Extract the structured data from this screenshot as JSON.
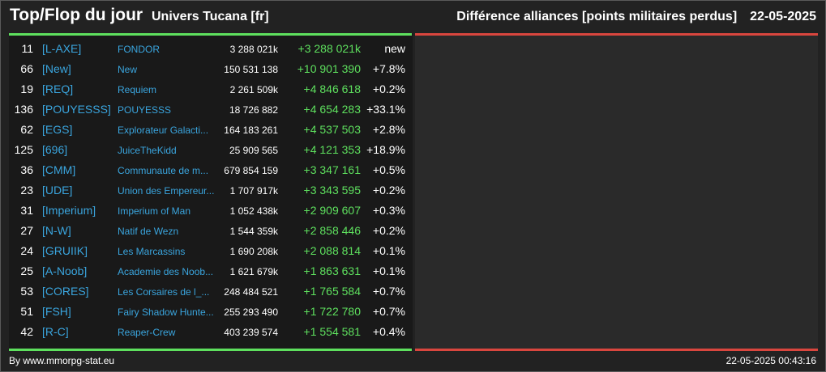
{
  "header": {
    "title": "Top/Flop du jour",
    "universe": "Univers Tucana [fr]",
    "subject": "Différence alliances [points militaires perdus]",
    "date": "22-05-2025"
  },
  "colors": {
    "tag_link": "#3aa5de",
    "gain": "#5ee05e",
    "flop_line": "#d9463e",
    "top_line": "#5ee05e"
  },
  "rows": [
    {
      "rank": "11",
      "tag": "[L-AXE]",
      "name": "FONDOR",
      "points": "3 288 021k",
      "diff": "+3 288 021k",
      "pct": "new"
    },
    {
      "rank": "66",
      "tag": "[New]",
      "name": "New",
      "points": "150 531 138",
      "diff": "+10 901 390",
      "pct": "+7.8%"
    },
    {
      "rank": "19",
      "tag": "[REQ]",
      "name": "Requiem",
      "points": "2 261 509k",
      "diff": "+4 846 618",
      "pct": "+0.2%"
    },
    {
      "rank": "136",
      "tag": "[POUYESSS]",
      "name": "POUYESSS",
      "points": "18 726 882",
      "diff": "+4 654 283",
      "pct": "+33.1%"
    },
    {
      "rank": "62",
      "tag": "[EGS]",
      "name": "Explorateur Galacti...",
      "points": "164 183 261",
      "diff": "+4 537 503",
      "pct": "+2.8%"
    },
    {
      "rank": "125",
      "tag": "[696]",
      "name": "JuiceTheKidd",
      "points": "25 909 565",
      "diff": "+4 121 353",
      "pct": "+18.9%"
    },
    {
      "rank": "36",
      "tag": "[CMM]",
      "name": "Communaute de m...",
      "points": "679 854 159",
      "diff": "+3 347 161",
      "pct": "+0.5%"
    },
    {
      "rank": "23",
      "tag": "[UDE]",
      "name": "Union des Empereur...",
      "points": "1 707 917k",
      "diff": "+3 343 595",
      "pct": "+0.2%"
    },
    {
      "rank": "31",
      "tag": "[Imperium]",
      "name": "Imperium of Man",
      "points": "1 052 438k",
      "diff": "+2 909 607",
      "pct": "+0.3%"
    },
    {
      "rank": "27",
      "tag": "[N-W]",
      "name": "Natif de Wezn",
      "points": "1 544 359k",
      "diff": "+2 858 446",
      "pct": "+0.2%"
    },
    {
      "rank": "24",
      "tag": "[GRUIIK]",
      "name": "Les Marcassins",
      "points": "1 690 208k",
      "diff": "+2 088 814",
      "pct": "+0.1%"
    },
    {
      "rank": "25",
      "tag": "[A-Noob]",
      "name": "Academie des Noob...",
      "points": "1 621 679k",
      "diff": "+1 863 631",
      "pct": "+0.1%"
    },
    {
      "rank": "53",
      "tag": "[CORES]",
      "name": "Les Corsaires de l_...",
      "points": "248 484 521",
      "diff": "+1 765 584",
      "pct": "+0.7%"
    },
    {
      "rank": "51",
      "tag": "[FSH]",
      "name": "Fairy Shadow Hunte...",
      "points": "255 293 490",
      "diff": "+1 722 780",
      "pct": "+0.7%"
    },
    {
      "rank": "42",
      "tag": "[R-C]",
      "name": "Reaper-Crew",
      "points": "403 239 574",
      "diff": "+1 554 581",
      "pct": "+0.4%"
    }
  ],
  "footer": {
    "credit": "By www.mmorpg-stat.eu",
    "timestamp": "22-05-2025 00:43:16"
  }
}
